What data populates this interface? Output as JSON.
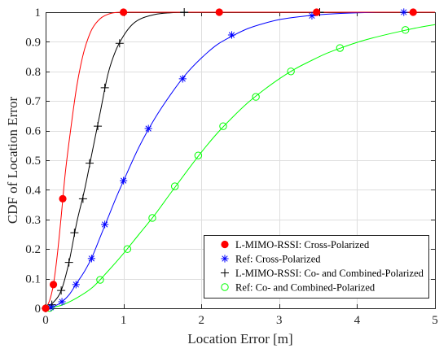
{
  "chart_data": {
    "type": "line",
    "xlabel": "Location Error [m]",
    "ylabel": "CDF of Location Error",
    "xlim": [
      0,
      5
    ],
    "ylim": [
      0,
      1
    ],
    "xticks": [
      0,
      1,
      2,
      3,
      4,
      5
    ],
    "xtick_labels": [
      "0",
      "1",
      "2",
      "3",
      "4",
      "5"
    ],
    "yticks": [
      0,
      0.1,
      0.2,
      0.3,
      0.4,
      0.5,
      0.6,
      0.7,
      0.8,
      0.9,
      1
    ],
    "ytick_labels": [
      "0",
      "0.1",
      "0.2",
      "0.3",
      "0.4",
      "0.5",
      "0.6",
      "0.7",
      "0.8",
      "0.9",
      "1"
    ],
    "grid": true,
    "legend_position": "bottom-right",
    "series": [
      {
        "name": "L-MIMO-RSSI: Cross-Polarized",
        "color": "#ff0000",
        "marker": "filled-circle",
        "x": [
          0,
          0.05,
          0.1,
          0.15,
          0.2,
          0.25,
          0.3,
          0.35,
          0.4,
          0.45,
          0.5,
          0.55,
          0.6,
          0.7,
          0.8,
          0.9,
          1.0,
          5.0
        ],
        "y": [
          0,
          0.025,
          0.08,
          0.18,
          0.31,
          0.45,
          0.56,
          0.66,
          0.75,
          0.82,
          0.875,
          0.915,
          0.945,
          0.978,
          0.993,
          0.999,
          1.0,
          1.0
        ],
        "marker_x": [
          0,
          0.1,
          0.22,
          1.0,
          2.23,
          3.48,
          4.72
        ],
        "marker_y": [
          0,
          0.08,
          0.37,
          1.0,
          1.0,
          1.0,
          1.0
        ]
      },
      {
        "name": "Ref: Cross-Polarized",
        "color": "#0000ff",
        "marker": "asterisk",
        "x": [
          0,
          0.1,
          0.2,
          0.3,
          0.4,
          0.5,
          0.6,
          0.7,
          0.8,
          0.9,
          1.0,
          1.2,
          1.4,
          1.6,
          1.8,
          2.0,
          2.2,
          2.4,
          2.6,
          2.8,
          3.0,
          3.3,
          3.6,
          4.0,
          4.5,
          5.0
        ],
        "y": [
          0,
          0.006,
          0.02,
          0.045,
          0.085,
          0.125,
          0.175,
          0.24,
          0.305,
          0.37,
          0.43,
          0.545,
          0.64,
          0.72,
          0.79,
          0.845,
          0.89,
          0.92,
          0.945,
          0.962,
          0.975,
          0.986,
          0.993,
          0.998,
          1.0,
          1.0
        ],
        "marker_x": [
          0.07,
          0.21,
          0.39,
          0.59,
          0.76,
          1.0,
          1.32,
          1.76,
          2.39,
          3.42,
          4.6
        ],
        "marker_y": [
          0.003,
          0.022,
          0.08,
          0.168,
          0.283,
          0.431,
          0.607,
          0.775,
          0.923,
          0.988,
          1.0
        ]
      },
      {
        "name": "L-MIMO-RSSI: Co- and Combined-Polarized",
        "color": "#000000",
        "marker": "plus",
        "x": [
          0,
          0.1,
          0.2,
          0.3,
          0.4,
          0.5,
          0.6,
          0.7,
          0.8,
          0.9,
          1.0,
          1.1,
          1.2,
          1.4,
          1.6,
          1.8,
          5.0
        ],
        "y": [
          0,
          0.02,
          0.06,
          0.155,
          0.29,
          0.4,
          0.53,
          0.66,
          0.79,
          0.87,
          0.92,
          0.955,
          0.975,
          0.992,
          0.998,
          1.0,
          1.0
        ],
        "marker_x": [
          0,
          0.08,
          0.2,
          0.3,
          0.37,
          0.48,
          0.565,
          0.67,
          0.76,
          0.95,
          1.78,
          3.52
        ],
        "marker_y": [
          0,
          0.012,
          0.06,
          0.155,
          0.255,
          0.37,
          0.49,
          0.615,
          0.745,
          0.895,
          1.0,
          1.0
        ]
      },
      {
        "name": "Ref: Co- and Combined-Polarized",
        "color": "#00ff00",
        "marker": "open-circle",
        "x": [
          0,
          0.2,
          0.4,
          0.6,
          0.8,
          1.0,
          1.2,
          1.4,
          1.6,
          1.8,
          2.0,
          2.2,
          2.4,
          2.6,
          2.8,
          3.0,
          3.2,
          3.4,
          3.6,
          3.8,
          4.0,
          4.2,
          4.4,
          4.6,
          4.8,
          5.0
        ],
        "y": [
          0,
          0.01,
          0.035,
          0.07,
          0.125,
          0.185,
          0.25,
          0.315,
          0.387,
          0.458,
          0.527,
          0.59,
          0.645,
          0.695,
          0.737,
          0.775,
          0.808,
          0.835,
          0.86,
          0.88,
          0.898,
          0.913,
          0.926,
          0.938,
          0.949,
          0.958
        ],
        "marker_x": [
          0.05,
          0.7,
          1.05,
          1.37,
          1.66,
          1.96,
          2.28,
          2.7,
          3.15,
          3.78,
          4.62
        ],
        "marker_y": [
          0.001,
          0.096,
          0.2,
          0.305,
          0.412,
          0.516,
          0.615,
          0.714,
          0.8,
          0.879,
          0.94
        ]
      }
    ]
  }
}
